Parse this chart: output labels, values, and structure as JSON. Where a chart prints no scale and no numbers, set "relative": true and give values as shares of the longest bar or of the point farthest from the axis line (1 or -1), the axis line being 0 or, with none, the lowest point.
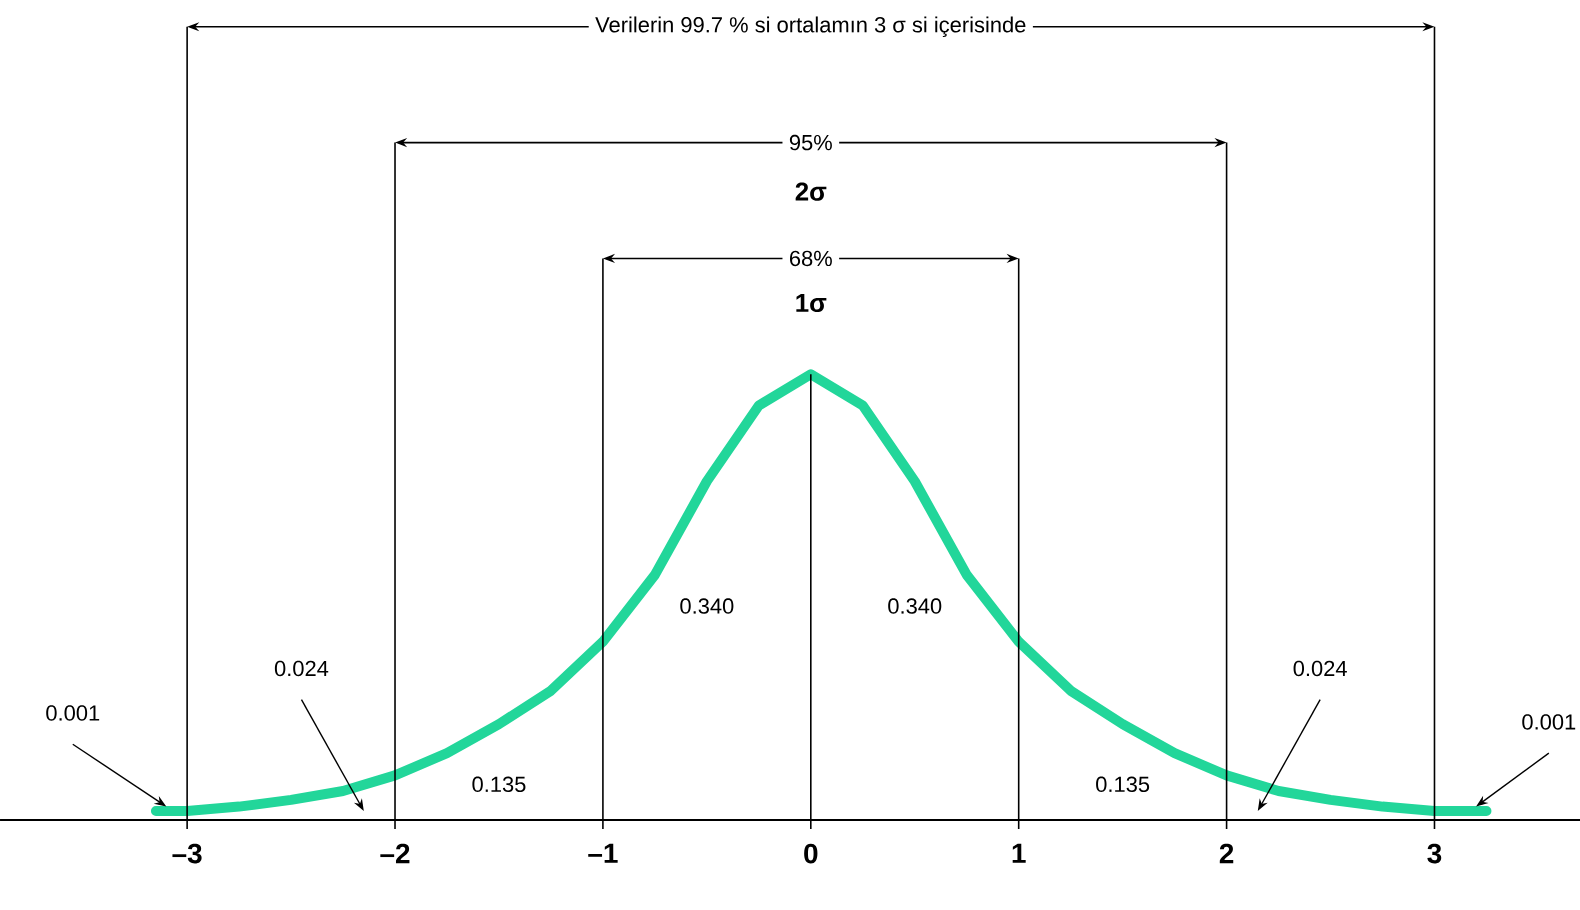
{
  "chart_data": {
    "type": "line",
    "relative": true,
    "x": [
      -3.15,
      -3,
      -2.75,
      -2.5,
      -2.25,
      -2,
      -1.75,
      -1.5,
      -1.25,
      -1,
      -0.75,
      -0.5,
      -0.25,
      0,
      0.25,
      0.5,
      0.75,
      1,
      1.25,
      1.5,
      1.75,
      2,
      2.25,
      2.5,
      2.75,
      3,
      3.25
    ],
    "series": [
      {
        "color": "#22d69a",
        "values": [
          0.02,
          0.02,
          0.03,
          0.045,
          0.065,
          0.1,
          0.15,
          0.215,
          0.29,
          0.4,
          0.55,
          0.76,
          0.93,
          1,
          0.93,
          0.76,
          0.55,
          0.4,
          0.29,
          0.215,
          0.15,
          0.1,
          0.065,
          0.045,
          0.03,
          0.02,
          0.02
        ]
      }
    ],
    "xlim": [
      -3.9,
      3.7
    ],
    "xticks": [
      {
        "value": -3,
        "label": "–3"
      },
      {
        "value": -2,
        "label": "–2"
      },
      {
        "value": -1,
        "label": "–1"
      },
      0,
      1,
      2,
      3
    ],
    "ref_lines": [
      {
        "axis": "x",
        "value": 0
      },
      {
        "axis": "x",
        "value": -1
      },
      {
        "axis": "x",
        "value": 1
      },
      {
        "axis": "x",
        "value": -2
      },
      {
        "axis": "x",
        "value": 2
      },
      {
        "axis": "x",
        "value": -3
      },
      {
        "axis": "x",
        "value": 3
      }
    ],
    "annotations": [
      "Verilerin 99.7 % si ortalamın 3 σ si içerisinde",
      "95%",
      "2σ",
      "68%",
      "1σ",
      "0.340",
      "0.340",
      "0.024",
      "0.024",
      "0.135",
      "0.135",
      "0.001",
      "0.001"
    ]
  }
}
